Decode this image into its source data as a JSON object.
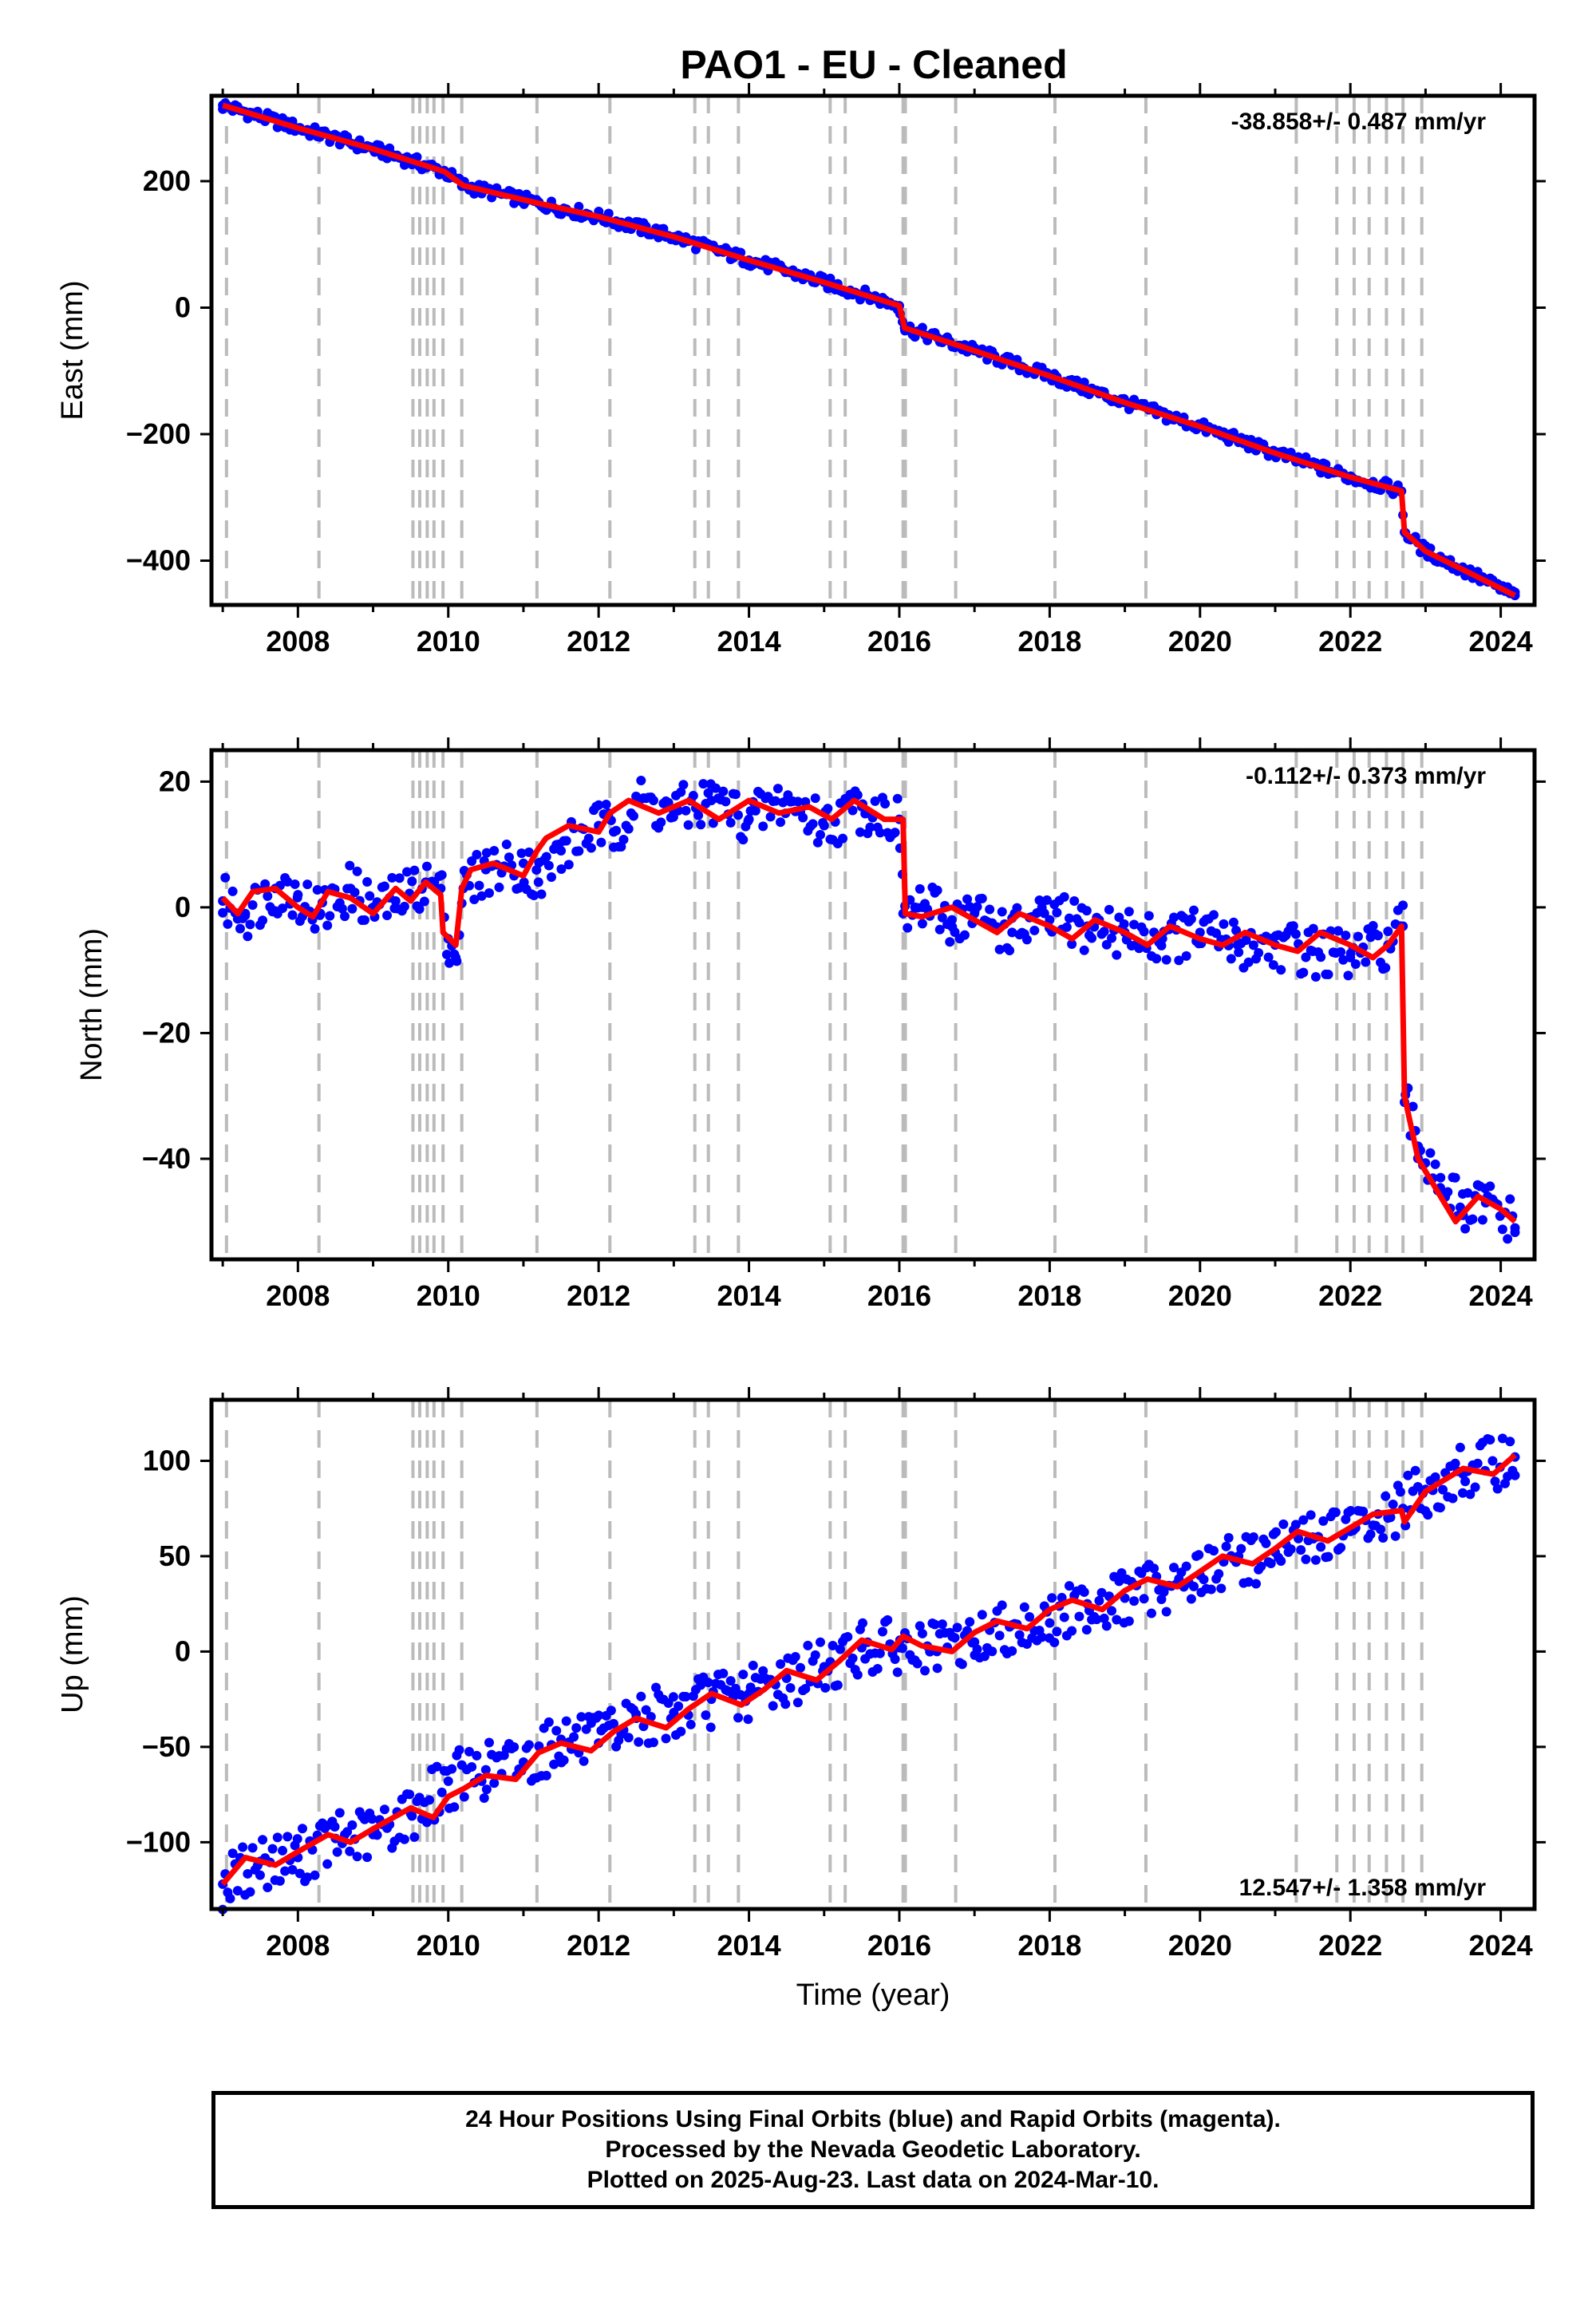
{
  "colors": {
    "data_points": "#0000ff",
    "model_fit": "#ff0000",
    "event_lines": "#bbbbbb"
  },
  "chart_data": {
    "title": "PAO1  - EU - Cleaned",
    "xlabel": "Time (year)",
    "xlim": [
      2006.85,
      2024.45
    ],
    "xticks": [
      2008,
      2010,
      2012,
      2014,
      2016,
      2018,
      2020,
      2022,
      2024
    ],
    "event_lines": [
      2007.05,
      2008.28,
      2009.53,
      2009.62,
      2009.72,
      2009.81,
      2009.93,
      2010.18,
      2011.18,
      2012.15,
      2013.28,
      2013.46,
      2013.86,
      2015.08,
      2015.28,
      2016.05,
      2016.08,
      2016.75,
      2018.07,
      2019.28,
      2021.28,
      2021.82,
      2022.05,
      2022.25,
      2022.48,
      2022.7,
      2022.95
    ],
    "panels": [
      {
        "type": "scatter",
        "ylabel": "East (mm)",
        "ylim": [
          -470,
          335
        ],
        "yticks": [
          -400,
          -200,
          0,
          200
        ],
        "rate_label": "-38.858+/- 0.487 mm/yr",
        "rate_position": "top-right",
        "series": [
          {
            "style": "points",
            "x": [
              2007.0,
              2008.0,
              2009.0,
              2009.95,
              2010.2,
              2011.2,
              2012.0,
              2013.0,
              2014.0,
              2015.0,
              2016.0,
              2016.07,
              2017.0,
              2018.0,
              2019.0,
              2020.0,
              2021.0,
              2022.0,
              2022.68,
              2022.72,
              2023.0,
              2024.19
            ],
            "y": [
              320,
              284,
              251,
              215,
              193,
              165,
              144,
              112,
              75,
              40,
              3,
              -32,
              -68,
              -108,
              -150,
              -188,
              -230,
              -268,
              -290,
              -355,
              -385,
              -455
            ]
          },
          {
            "style": "line",
            "x": [
              2007.0,
              2008.0,
              2009.0,
              2009.95,
              2010.2,
              2011.2,
              2012.0,
              2013.0,
              2014.0,
              2015.0,
              2016.0,
              2016.07,
              2017.0,
              2018.0,
              2019.0,
              2020.0,
              2021.0,
              2022.0,
              2022.68,
              2022.72,
              2023.0,
              2024.19
            ],
            "y": [
              320,
              284,
              251,
              215,
              193,
              165,
              144,
              112,
              75,
              40,
              3,
              -32,
              -68,
              -108,
              -150,
              -188,
              -230,
              -268,
              -290,
              -355,
              -385,
              -455
            ]
          }
        ]
      },
      {
        "type": "scatter",
        "ylabel": "North (mm)",
        "ylim": [
          -56,
          25
        ],
        "yticks": [
          -40,
          -20,
          0,
          20
        ],
        "rate_label": "-0.112+/- 0.373 mm/yr",
        "rate_position": "top-right",
        "series": [
          {
            "style": "points",
            "x": [
              2007.0,
              2007.3,
              2007.7,
              2008.0,
              2008.3,
              2008.7,
              2009.0,
              2009.3,
              2009.7,
              2009.9,
              2010.0,
              2010.1,
              2010.2,
              2010.5,
              2011.0,
              2011.2,
              2011.5,
              2012.0,
              2012.2,
              2012.5,
              2013.0,
              2013.5,
              2014.0,
              2014.5,
              2015.0,
              2015.5,
              2016.0,
              2016.05,
              2016.3,
              2016.7,
              2017.0,
              2017.5,
              2018.0,
              2018.5,
              2019.0,
              2019.5,
              2020.0,
              2020.5,
              2021.0,
              2021.5,
              2022.0,
              2022.5,
              2022.7,
              2022.72,
              2022.9,
              2023.2,
              2023.5,
              2023.8,
              2024.19
            ],
            "y": [
              1,
              -1,
              3,
              2,
              -1,
              3,
              0,
              1,
              4,
              3,
              -5,
              -8,
              3,
              6,
              7,
              4,
              9,
              13,
              12,
              17,
              15,
              17,
              14,
              17,
              13,
              16,
              14,
              -1,
              0,
              -2,
              -1,
              -4,
              -2,
              -3,
              -4,
              -5,
              -4,
              -6,
              -6,
              -7,
              -8,
              -6,
              -3,
              -31,
              -38,
              -43,
              -49,
              -47,
              -51
            ]
          },
          {
            "style": "line",
            "x": [
              2007.0,
              2007.2,
              2007.4,
              2007.7,
              2008.0,
              2008.2,
              2008.4,
              2008.7,
              2009.0,
              2009.3,
              2009.5,
              2009.7,
              2009.9,
              2009.93,
              2010.1,
              2010.18,
              2010.3,
              2010.6,
              2011.0,
              2011.18,
              2011.3,
              2011.6,
              2012.0,
              2012.15,
              2012.4,
              2012.8,
              2013.2,
              2013.6,
              2014.0,
              2014.4,
              2014.8,
              2015.1,
              2015.4,
              2015.8,
              2016.05,
              2016.08,
              2016.3,
              2016.7,
              2017.0,
              2017.3,
              2017.6,
              2018.0,
              2018.3,
              2018.6,
              2019.0,
              2019.3,
              2019.6,
              2020.0,
              2020.3,
              2020.6,
              2021.0,
              2021.3,
              2021.6,
              2022.0,
              2022.3,
              2022.5,
              2022.68,
              2022.72,
              2022.9,
              2023.2,
              2023.4,
              2023.7,
              2024.0,
              2024.19
            ],
            "y": [
              1.5,
              -1,
              2.5,
              3,
              0,
              -1.5,
              2.5,
              1.5,
              -1,
              3,
              1,
              4,
              2,
              -4,
              -6,
              3,
              6,
              7,
              5,
              9,
              11,
              13,
              12,
              15,
              17,
              15,
              17,
              14,
              17,
              15,
              16,
              14,
              17,
              14,
              14,
              -1,
              -1.5,
              0,
              -2,
              -4,
              -1,
              -3,
              -5,
              -2,
              -4,
              -6,
              -3,
              -5,
              -6,
              -4,
              -6,
              -7,
              -4,
              -6,
              -8,
              -6,
              -3,
              -30,
              -40,
              -46,
              -50,
              -46,
              -48,
              -50
            ]
          }
        ]
      },
      {
        "type": "scatter",
        "ylabel": "Up (mm)",
        "ylim": [
          -135,
          132
        ],
        "yticks": [
          -100,
          -50,
          0,
          50,
          100
        ],
        "rate_label": "12.547+/- 1.358 mm/yr",
        "rate_position": "bottom-right",
        "series": [
          {
            "style": "points",
            "x": [
              2007.0,
              2007.5,
              2008.0,
              2008.5,
              2009.0,
              2009.5,
              2010.0,
              2010.5,
              2011.0,
              2011.5,
              2012.0,
              2012.5,
              2013.0,
              2013.5,
              2014.0,
              2014.5,
              2015.0,
              2015.5,
              2016.0,
              2016.5,
              2017.0,
              2017.5,
              2018.0,
              2018.5,
              2019.0,
              2019.5,
              2020.0,
              2020.5,
              2021.0,
              2021.5,
              2022.0,
              2022.5,
              2023.0,
              2023.5,
              2024.19
            ],
            "y": [
              -122,
              -110,
              -108,
              -98,
              -96,
              -85,
              -68,
              -62,
              -58,
              -46,
              -48,
              -35,
              -32,
              -25,
              -22,
              -14,
              -8,
              2,
              2,
              0,
              5,
              14,
              15,
              25,
              28,
              35,
              40,
              48,
              52,
              60,
              63,
              70,
              85,
              93,
              102
            ]
          },
          {
            "style": "line",
            "x": [
              2007.0,
              2007.3,
              2007.7,
              2008.0,
              2008.4,
              2008.7,
              2009.0,
              2009.5,
              2009.8,
              2010.0,
              2010.2,
              2010.5,
              2010.9,
              2011.2,
              2011.5,
              2011.9,
              2012.2,
              2012.5,
              2012.9,
              2013.2,
              2013.5,
              2013.9,
              2014.2,
              2014.5,
              2014.9,
              2015.2,
              2015.5,
              2015.9,
              2016.05,
              2016.3,
              2016.7,
              2017.0,
              2017.3,
              2017.7,
              2018.0,
              2018.3,
              2018.7,
              2019.0,
              2019.3,
              2019.7,
              2020.0,
              2020.3,
              2020.7,
              2021.0,
              2021.3,
              2021.7,
              2022.0,
              2022.3,
              2022.68,
              2022.72,
              2023.0,
              2023.5,
              2023.9,
              2024.19
            ],
            "y": [
              -122,
              -108,
              -112,
              -105,
              -96,
              -100,
              -93,
              -82,
              -87,
              -76,
              -72,
              -65,
              -67,
              -53,
              -48,
              -52,
              -42,
              -35,
              -40,
              -30,
              -22,
              -28,
              -20,
              -10,
              -15,
              -5,
              6,
              1,
              8,
              3,
              0,
              10,
              16,
              12,
              22,
              27,
              22,
              32,
              38,
              34,
              42,
              50,
              46,
              54,
              63,
              58,
              65,
              72,
              74,
              68,
              84,
              96,
              93,
              103
            ]
          }
        ]
      }
    ]
  },
  "footer": {
    "line1": "24 Hour Positions Using Final Orbits (blue) and Rapid Orbits (magenta).",
    "line2": "Processed by the Nevada Geodetic Laboratory.",
    "line3": "Plotted on 2025-Aug-23. Last data on 2024-Mar-10."
  }
}
